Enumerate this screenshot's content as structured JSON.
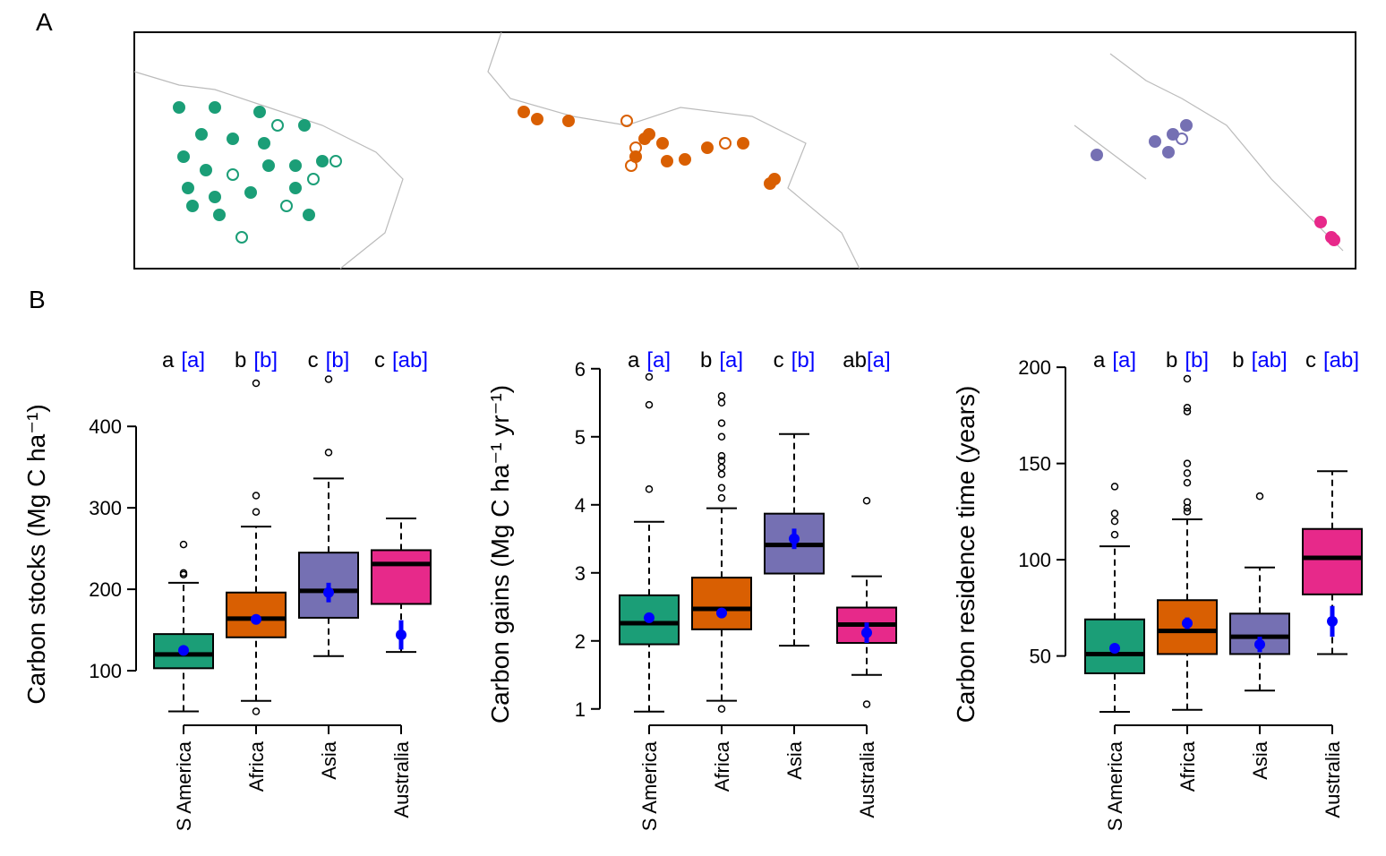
{
  "panel_labels": [
    "A",
    "B"
  ],
  "chart_data": [
    {
      "type": "box",
      "ylabel": "Carbon stocks (Mg C ha⁻¹)",
      "categories": [
        "S America",
        "Africa",
        "Asia",
        "Australia"
      ],
      "colors": [
        "#1b9e77",
        "#d95f02",
        "#7570b3",
        "#e7298a"
      ],
      "letters": [
        "a",
        "b",
        "c",
        "c"
      ],
      "letters_blue": [
        "[a]",
        "[b]",
        "[b]",
        "[ab]"
      ],
      "ylim": [
        33,
        475
      ],
      "yticks": [
        100,
        200,
        300,
        400
      ],
      "boxes": [
        {
          "whislo": 50,
          "q1": 103,
          "med": 120,
          "q3": 145,
          "whishi": 208,
          "fliers": [
            218,
            220,
            255
          ],
          "mean": 125,
          "mean_err": 3
        },
        {
          "whislo": 63,
          "q1": 141,
          "med": 164,
          "q3": 196,
          "whishi": 277,
          "fliers": [
            50,
            295,
            315,
            453
          ],
          "mean": 163,
          "mean_err": 4
        },
        {
          "whislo": 118,
          "q1": 165,
          "med": 198,
          "q3": 245,
          "whishi": 336,
          "fliers": [
            368,
            458
          ],
          "mean": 196,
          "mean_err": 12
        },
        {
          "whislo": 123,
          "q1": 182,
          "med": 231,
          "q3": 248,
          "whishi": 287,
          "fliers": [],
          "mean": 144,
          "mean_err": 18
        }
      ]
    },
    {
      "type": "box",
      "ylabel": "Carbon gains (Mg C ha⁻¹ yr⁻¹)",
      "categories": [
        "S America",
        "Africa",
        "Asia",
        "Australia"
      ],
      "colors": [
        "#1b9e77",
        "#d95f02",
        "#7570b3",
        "#e7298a"
      ],
      "letters": [
        "a",
        "b",
        "c",
        "ab"
      ],
      "letters_blue": [
        "[a]",
        "[a]",
        "[b]",
        "[a]"
      ],
      "ylim": [
        0.76,
        6.05
      ],
      "yticks": [
        1,
        2,
        3,
        4,
        5,
        6
      ],
      "boxes": [
        {
          "whislo": 0.96,
          "q1": 1.95,
          "med": 2.26,
          "q3": 2.67,
          "whishi": 3.75,
          "fliers": [
            4.23,
            5.47,
            5.88
          ],
          "mean": 2.34,
          "mean_err": 0.05
        },
        {
          "whislo": 1.12,
          "q1": 2.17,
          "med": 2.47,
          "q3": 2.93,
          "whishi": 3.95,
          "fliers": [
            1.0,
            4.1,
            4.25,
            4.45,
            4.55,
            4.65,
            4.72,
            5.0,
            5.2,
            5.5,
            5.6
          ],
          "mean": 2.41,
          "mean_err": 0.05
        },
        {
          "whislo": 1.93,
          "q1": 2.99,
          "med": 3.41,
          "q3": 3.87,
          "whishi": 5.04,
          "fliers": [],
          "mean": 3.5,
          "mean_err": 0.15
        },
        {
          "whislo": 1.5,
          "q1": 1.97,
          "med": 2.24,
          "q3": 2.49,
          "whishi": 2.95,
          "fliers": [
            1.07,
            4.06
          ],
          "mean": 2.12,
          "mean_err": 0.15
        }
      ]
    },
    {
      "type": "box",
      "ylabel": "Carbon residence time (years)",
      "categories": [
        "S America",
        "Africa",
        "Asia",
        "Australia"
      ],
      "colors": [
        "#1b9e77",
        "#d95f02",
        "#7570b3",
        "#e7298a"
      ],
      "letters": [
        "a",
        "b",
        "b",
        "c"
      ],
      "letters_blue": [
        "[a]",
        "[b]",
        "[ab]",
        "[ab]"
      ],
      "ylim": [
        14,
        201
      ],
      "yticks": [
        50,
        100,
        150,
        200
      ],
      "boxes": [
        {
          "whislo": 21,
          "q1": 41,
          "med": 51,
          "q3": 69,
          "whishi": 107,
          "fliers": [
            113,
            120,
            124,
            138
          ],
          "mean": 54,
          "mean_err": 2
        },
        {
          "whislo": 22,
          "q1": 51,
          "med": 63,
          "q3": 79,
          "whishi": 121,
          "fliers": [
            125,
            127,
            130,
            140,
            145,
            150,
            177,
            179,
            194
          ],
          "mean": 67,
          "mean_err": 3
        },
        {
          "whislo": 32,
          "q1": 51,
          "med": 60,
          "q3": 72,
          "whishi": 96,
          "fliers": [
            133
          ],
          "mean": 56,
          "mean_err": 4
        },
        {
          "whislo": 51,
          "q1": 82,
          "med": 101,
          "q3": 116,
          "whishi": 146,
          "fliers": [],
          "mean": 68,
          "mean_err": 8
        }
      ]
    }
  ]
}
